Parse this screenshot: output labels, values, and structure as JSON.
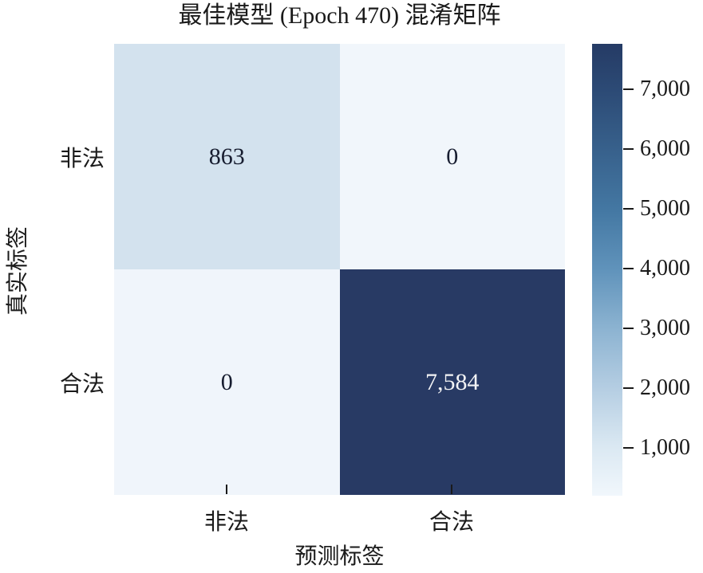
{
  "chart_data": {
    "type": "heatmap",
    "title": "最佳模型 (Epoch 470) 混淆矩阵",
    "xlabel": "预测标签",
    "ylabel": "真实标签",
    "x_categories": [
      "非法",
      "合法"
    ],
    "y_categories": [
      "非法",
      "合法"
    ],
    "matrix": [
      [
        863,
        0
      ],
      [
        0,
        7584
      ]
    ],
    "cells": [
      {
        "row": "非法",
        "col": "非法",
        "value": 863,
        "label": "863",
        "color": "#d3e2ee",
        "text_color": "#171d30"
      },
      {
        "row": "非法",
        "col": "合法",
        "value": 0,
        "label": "0",
        "color": "#f1f6fb",
        "text_color": "#171d30"
      },
      {
        "row": "合法",
        "col": "非法",
        "value": 0,
        "label": "0",
        "color": "#f0f5fb",
        "text_color": "#171d30"
      },
      {
        "row": "合法",
        "col": "合法",
        "value": 7584,
        "label": "7,584",
        "color": "#283a64",
        "text_color": "#f2f3f5"
      }
    ],
    "colorbar": {
      "vmin": 0,
      "vmax": 7584,
      "tick_labels": [
        "7,000",
        "6,000",
        "5,000",
        "4,000",
        "3,000",
        "2,000",
        "1,000"
      ],
      "gradient_stops": [
        {
          "pos": 0.0,
          "color": "#253b65"
        },
        {
          "pos": 0.1,
          "color": "#2c4a75"
        },
        {
          "pos": 0.23,
          "color": "#37608b"
        },
        {
          "pos": 0.37,
          "color": "#4478a3"
        },
        {
          "pos": 0.5,
          "color": "#6093bb"
        },
        {
          "pos": 0.63,
          "color": "#8cb3d1"
        },
        {
          "pos": 0.76,
          "color": "#b4cde2"
        },
        {
          "pos": 0.89,
          "color": "#dae8f2"
        },
        {
          "pos": 1.0,
          "color": "#f1f7fc"
        }
      ]
    },
    "grid": false,
    "legend_position": "none",
    "axis_tick_direction": "in"
  }
}
